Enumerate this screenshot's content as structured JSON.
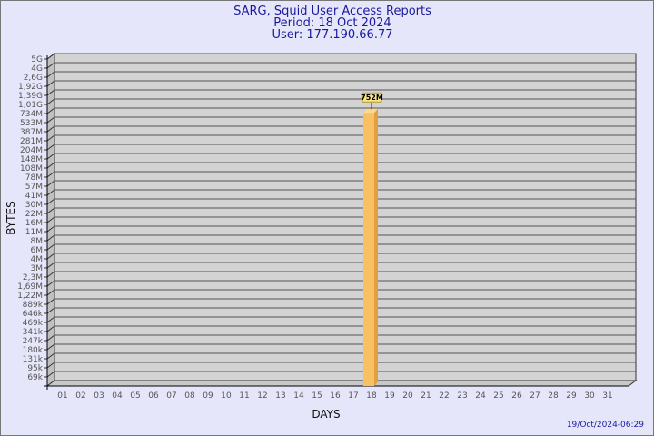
{
  "chart_data": {
    "type": "bar",
    "title": "SARG, Squid User Access Reports",
    "subtitle_lines": [
      "Period: 18 Oct 2024",
      "User: 177.190.66.77"
    ],
    "xlabel": "DAYS",
    "ylabel": "BYTES",
    "categories": [
      "01",
      "02",
      "03",
      "04",
      "05",
      "06",
      "07",
      "08",
      "09",
      "10",
      "11",
      "12",
      "13",
      "14",
      "15",
      "16",
      "17",
      "18",
      "19",
      "20",
      "21",
      "22",
      "23",
      "24",
      "25",
      "26",
      "27",
      "28",
      "29",
      "30",
      "31"
    ],
    "values": [
      0,
      0,
      0,
      0,
      0,
      0,
      0,
      0,
      0,
      0,
      0,
      0,
      0,
      0,
      0,
      0,
      0,
      752000000,
      0,
      0,
      0,
      0,
      0,
      0,
      0,
      0,
      0,
      0,
      0,
      0,
      0
    ],
    "data_labels": {
      "18": "752M"
    },
    "y_scale": "log",
    "y_tick_labels": [
      "5G",
      "4G",
      "2,6G",
      "1,92G",
      "1,39G",
      "1,01G",
      "734M",
      "533M",
      "387M",
      "281M",
      "204M",
      "148M",
      "108M",
      "78M",
      "57M",
      "41M",
      "30M",
      "22M",
      "16M",
      "11M",
      "8M",
      "6M",
      "4M",
      "3M",
      "2,3M",
      "1,69M",
      "1,22M",
      "889k",
      "646k",
      "469k",
      "341k",
      "247k",
      "180k",
      "131k",
      "95k",
      "69k"
    ],
    "y_tick_values": [
      5000000000,
      4000000000,
      2600000000,
      1920000000,
      1390000000,
      1010000000,
      734000000,
      533000000,
      387000000,
      281000000,
      204000000,
      148000000,
      108000000,
      78000000,
      57000000,
      41000000,
      30000000,
      22000000,
      16000000,
      11000000,
      8000000,
      6000000,
      4000000,
      3000000,
      2300000,
      1690000,
      1220000,
      889000,
      646000,
      469000,
      341000,
      247000,
      180000,
      131000,
      95000,
      69000
    ],
    "grid": true,
    "colors": {
      "bar": "#f8c060",
      "bar_side": "#e0a040",
      "wall": "#d3d3d3",
      "background": "#e6e6fa",
      "title": "#1a1aa0"
    }
  },
  "footer": {
    "timestamp": "19/Oct/2024-06:29"
  }
}
